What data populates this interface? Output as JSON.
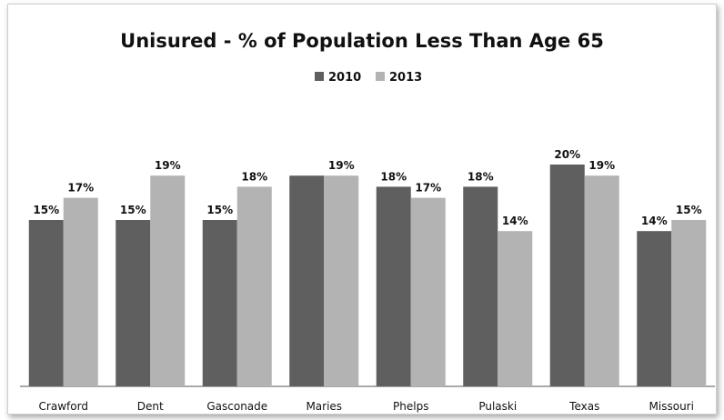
{
  "chart_data": {
    "type": "bar",
    "title": "Unisured - % of Population Less Than Age 65",
    "categories": [
      "Crawford",
      "Dent",
      "Gasconade",
      "Maries",
      "Phelps",
      "Pulaski",
      "Texas",
      "Missouri"
    ],
    "series": [
      {
        "name": "2010",
        "color": "#5f5f5f",
        "values": [
          15,
          15,
          15,
          19,
          18,
          18,
          20,
          14
        ],
        "labels": [
          "15%",
          "15%",
          "15%",
          "",
          "18%",
          "18%",
          "20%",
          "14%"
        ]
      },
      {
        "name": "2013",
        "color": "#b3b3b3",
        "values": [
          17,
          19,
          18,
          19,
          17,
          14,
          19,
          15
        ],
        "labels": [
          "17%",
          "19%",
          "18%",
          "19%",
          "17%",
          "14%",
          "19%",
          "15%"
        ]
      }
    ],
    "ylim": [
      0,
      25
    ],
    "legend_position": "top-center",
    "grid": false,
    "xlabel": "",
    "ylabel": ""
  }
}
